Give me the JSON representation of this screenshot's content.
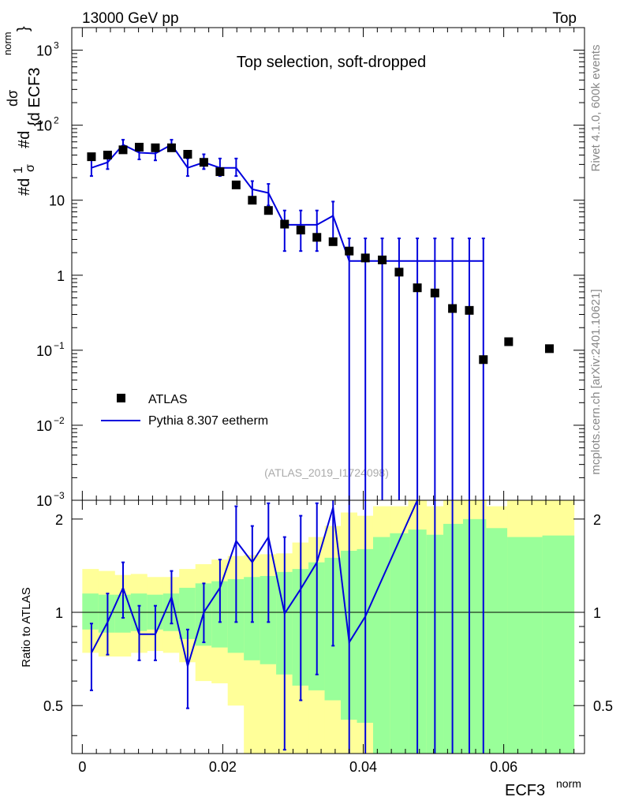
{
  "header": {
    "left": "13000 GeV pp",
    "right": "Top"
  },
  "side_labels": {
    "rivet": "Rivet 4.1.0,  600k events",
    "mcplots": "mcplots.cern.ch [arXiv:2401.10621]"
  },
  "colors": {
    "data": "#000000",
    "mc": "#0000dd",
    "band_outer": "#ffff99",
    "band_inner": "#99ff99"
  },
  "chart_data": [
    {
      "type": "scatter",
      "panel": "main",
      "title": "Top selection, soft-dropped",
      "watermark": "(ATLAS_2019_I1724098)",
      "yscale": "log",
      "ylim": [
        0.001,
        2000
      ],
      "xlim": [
        -0.0015,
        0.0715
      ],
      "ylabel": "#dσ/#d{ECF3}^{norm} / σ",
      "ylabel_parts": {
        "frac_num": "#d",
        "frac_num_sym": "1",
        "frac_den": "σ",
        "hash_d": "#d",
        "big_num": "dσ",
        "big_den": "{d ECF3",
        "sup": "norm",
        "brace": "}"
      },
      "ytick_labels": [
        {
          "value": 1000,
          "mantissa": "10",
          "exp": "3"
        },
        {
          "value": 100,
          "mantissa": "10",
          "exp": "2"
        },
        {
          "value": 10,
          "mantissa": "10",
          "exp": ""
        },
        {
          "value": 1,
          "mantissa": "1",
          "exp": ""
        },
        {
          "value": 0.1,
          "mantissa": "10",
          "exp": "−1"
        },
        {
          "value": 0.01,
          "mantissa": "10",
          "exp": "−2"
        },
        {
          "value": 0.001,
          "mantissa": "10",
          "exp": "−3"
        }
      ],
      "legend": [
        {
          "label": "ATLAS",
          "marker": "square"
        },
        {
          "label": "Pythia 8.307 eetherm",
          "marker": "line"
        }
      ],
      "series": [
        {
          "name": "ATLAS",
          "x": [
            0.0013,
            0.0036,
            0.0058,
            0.0081,
            0.0104,
            0.0127,
            0.015,
            0.0173,
            0.0196,
            0.0219,
            0.0242,
            0.0265,
            0.0288,
            0.0311,
            0.0334,
            0.0357,
            0.038,
            0.0403,
            0.0427,
            0.0451,
            0.0477,
            0.0502,
            0.0527,
            0.0551,
            0.0571,
            0.0607,
            0.0665
          ],
          "y": [
            38,
            40,
            47,
            51,
            50,
            50,
            41,
            32,
            24,
            16,
            10,
            7.3,
            4.8,
            4.0,
            3.2,
            2.8,
            2.1,
            1.7,
            1.6,
            1.1,
            0.68,
            0.58,
            0.36,
            0.34,
            0.075,
            0.13,
            0.105
          ]
        },
        {
          "name": "Pythia 8.307 eetherm",
          "x": [
            0.0013,
            0.0036,
            0.0058,
            0.0081,
            0.0104,
            0.0127,
            0.015,
            0.0173,
            0.0196,
            0.0219,
            0.0242,
            0.0265,
            0.0288,
            0.0311,
            0.0334,
            0.0357,
            0.038,
            0.0403,
            0.0427,
            0.0451,
            0.0477,
            0.0502,
            0.0527,
            0.0551,
            0.0571
          ],
          "y": [
            27,
            32,
            55,
            43,
            42,
            55,
            27,
            32,
            27,
            27,
            14,
            12.5,
            4.7,
            4.7,
            4.7,
            6.2,
            1.55,
            1.55,
            1.55,
            1.55,
            1.55,
            1.55,
            1.55,
            1.55,
            1.55
          ],
          "yerr_up": [
            35,
            41,
            64,
            52,
            51,
            64,
            36,
            41,
            36,
            36,
            18,
            16.5,
            7.3,
            7.3,
            7.3,
            9.6,
            3.1,
            3.1,
            3.1,
            3.1,
            3.1,
            3.1,
            3.1,
            3.1,
            3.1
          ],
          "yerr_down": [
            21,
            26,
            46,
            35,
            34,
            46,
            21,
            26,
            21,
            21,
            10,
            8.5,
            2.1,
            2.1,
            2.1,
            2.8,
            0.0001,
            0.0001,
            0.0001,
            0.0001,
            0.0001,
            0.0001,
            0.0001,
            0.0001,
            0.0001
          ]
        }
      ]
    },
    {
      "type": "line",
      "panel": "ratio",
      "ylabel": "Ratio to ATLAS",
      "xlabel": "ECF3",
      "xlabel_sup": "norm",
      "ylim": [
        0.35,
        2.3
      ],
      "xlim": [
        -0.0015,
        0.0715
      ],
      "xticks": [
        0,
        0.02,
        0.04,
        0.06
      ],
      "xtick_labels": [
        "0",
        "0.02",
        "0.04",
        "0.06"
      ],
      "yticks": [
        0.5,
        1,
        2
      ],
      "ytick_labels": [
        "0.5",
        "1",
        "2"
      ],
      "bands": {
        "edges": [
          0,
          0.0023,
          0.0046,
          0.0069,
          0.0092,
          0.0115,
          0.0138,
          0.0161,
          0.0184,
          0.0207,
          0.023,
          0.0253,
          0.0276,
          0.0299,
          0.0322,
          0.0345,
          0.0368,
          0.0391,
          0.0414,
          0.0438,
          0.0464,
          0.049,
          0.0514,
          0.0542,
          0.0575,
          0.0605,
          0.0655,
          0.07
        ],
        "outer_lo": [
          0.74,
          0.72,
          0.72,
          0.74,
          0.75,
          0.74,
          0.69,
          0.6,
          0.59,
          0.5,
          0.35,
          0.35,
          0.35,
          0.35,
          0.35,
          0.35,
          0.35,
          0.35,
          0.35,
          0.35,
          0.35,
          0.35,
          0.35,
          0.35,
          0.35,
          0.35,
          0.35
        ],
        "outer_hi": [
          1.38,
          1.36,
          1.32,
          1.33,
          1.3,
          1.3,
          1.38,
          1.43,
          1.48,
          1.52,
          1.53,
          1.54,
          1.55,
          1.68,
          1.75,
          1.9,
          2.1,
          2.05,
          2.2,
          2.2,
          2.3,
          2.2,
          2.3,
          2.3,
          2.2,
          2.3,
          2.3
        ],
        "inner_lo": [
          0.88,
          0.86,
          0.86,
          0.87,
          0.88,
          0.87,
          0.82,
          0.78,
          0.77,
          0.74,
          0.7,
          0.68,
          0.63,
          0.58,
          0.56,
          0.52,
          0.45,
          0.44,
          0.35,
          0.35,
          0.35,
          0.35,
          0.35,
          0.35,
          0.35,
          0.35,
          0.35
        ],
        "inner_hi": [
          1.15,
          1.14,
          1.14,
          1.15,
          1.14,
          1.15,
          1.2,
          1.24,
          1.26,
          1.28,
          1.3,
          1.31,
          1.35,
          1.38,
          1.45,
          1.5,
          1.58,
          1.6,
          1.75,
          1.8,
          1.85,
          1.78,
          1.93,
          2.0,
          1.87,
          1.75,
          1.77
        ]
      },
      "series": [
        {
          "name": "Pythia 8.307 eetherm",
          "x": [
            0.0013,
            0.0036,
            0.0058,
            0.0081,
            0.0104,
            0.0127,
            0.015,
            0.0173,
            0.0196,
            0.0219,
            0.0242,
            0.0265,
            0.0288,
            0.0311,
            0.0334,
            0.0357,
            0.038,
            0.0403,
            0.0477
          ],
          "y": [
            0.74,
            0.93,
            1.2,
            0.85,
            0.85,
            1.12,
            0.67,
            1.0,
            1.2,
            1.7,
            1.45,
            1.75,
            0.99,
            1.19,
            1.45,
            2.18,
            0.8,
            0.97,
            2.35
          ],
          "yerr_up": [
            0.92,
            1.15,
            1.45,
            1.05,
            1.05,
            1.36,
            0.88,
            1.24,
            1.48,
            2.2,
            1.9,
            2.25,
            1.75,
            2.05,
            2.25,
            2.35,
            2.35,
            2.35,
            2.35
          ],
          "yerr_down": [
            0.56,
            0.73,
            0.96,
            0.7,
            0.7,
            0.92,
            0.49,
            0.8,
            0.93,
            0.93,
            0.93,
            0.93,
            0.36,
            0.52,
            0.63,
            0.78,
            0.35,
            0.35,
            0.35
          ],
          "bar_x": [
            0.0013,
            0.0036,
            0.0058,
            0.0081,
            0.0104,
            0.0127,
            0.015,
            0.0173,
            0.0196,
            0.0219,
            0.0242,
            0.0265,
            0.0288,
            0.0311,
            0.0334,
            0.0357,
            0.038,
            0.0403,
            0.0477,
            0.0502,
            0.0527,
            0.0551,
            0.0571
          ]
        }
      ]
    }
  ]
}
